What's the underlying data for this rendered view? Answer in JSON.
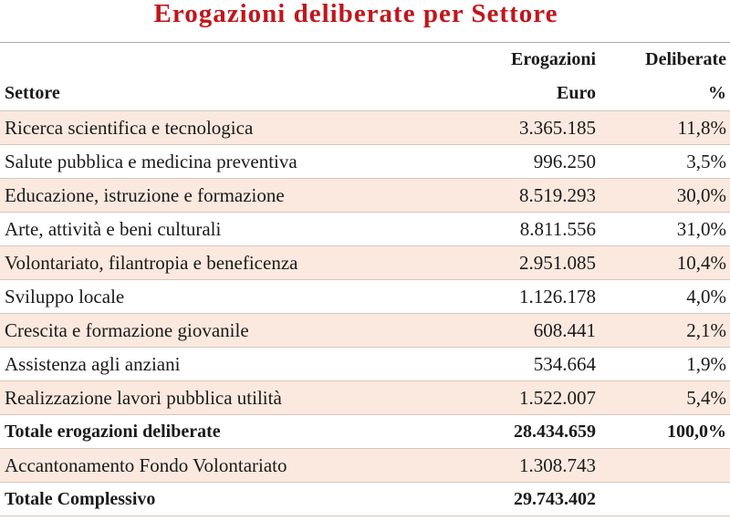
{
  "title": "Erogazioni deliberate per Settore",
  "header": {
    "col1": "Settore",
    "col2_line1": "Erogazioni",
    "col2_line2": "Euro",
    "col3_line1": "Deliberate",
    "col3_line2": "%"
  },
  "rows": [
    {
      "settore": "Ricerca scientifica e tecnologica",
      "euro": "3.365.185",
      "pct": "11,8%"
    },
    {
      "settore": "Salute pubblica e medicina preventiva",
      "euro": "996.250",
      "pct": "3,5%"
    },
    {
      "settore": "Educazione, istruzione e formazione",
      "euro": "8.519.293",
      "pct": "30,0%"
    },
    {
      "settore": "Arte, attività e beni culturali",
      "euro": "8.811.556",
      "pct": "31,0%"
    },
    {
      "settore": "Volontariato, filantropia e beneficenza",
      "euro": "2.951.085",
      "pct": "10,4%"
    },
    {
      "settore": "Sviluppo locale",
      "euro": "1.126.178",
      "pct": "4,0%"
    },
    {
      "settore": "Crescita e formazione giovanile",
      "euro": "608.441",
      "pct": "2,1%"
    },
    {
      "settore": "Assistenza agli anziani",
      "euro": "534.664",
      "pct": "1,9%"
    },
    {
      "settore": "Realizzazione lavori pubblica utilità",
      "euro": "1.522.007",
      "pct": "5,4%"
    }
  ],
  "total_deliberate": {
    "label": "Totale erogazioni deliberate",
    "euro": "28.434.659",
    "pct": "100,0%"
  },
  "accantonamento": {
    "label": "Accantonamento Fondo Volontariato",
    "euro": "1.308.743",
    "pct": ""
  },
  "total_complessivo": {
    "label": "Totale Complessivo",
    "euro": "29.743.402",
    "pct": ""
  },
  "colors": {
    "title": "#c0171c",
    "row_shade": "#fbe9df"
  }
}
